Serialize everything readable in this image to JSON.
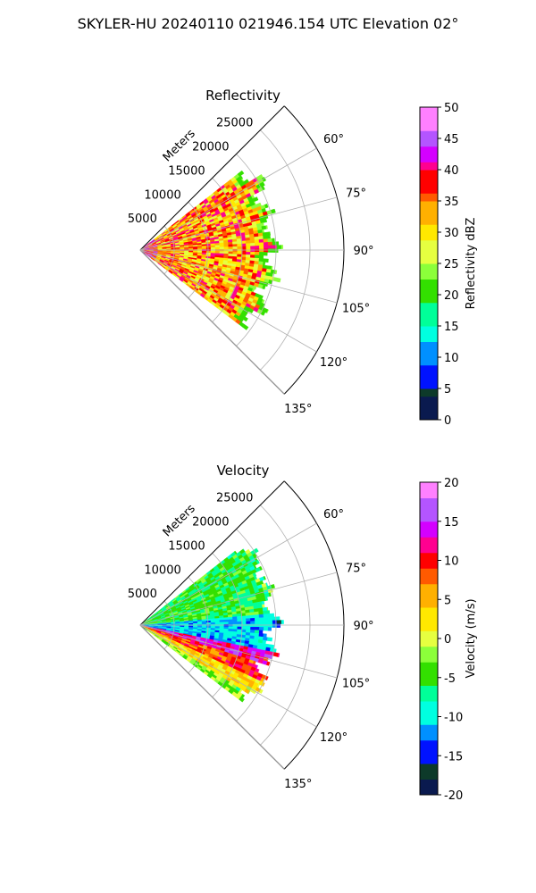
{
  "figure_title": "SKYLER-HU  20240110  021946.154 UTC Elevation 02°",
  "chart_data": [
    {
      "type": "heatmap",
      "title": "Reflectivity",
      "range_label": "Meters",
      "range_ticks": [
        5000,
        10000,
        15000,
        20000,
        25000
      ],
      "range_max": 30000,
      "azimuth_ticks": [
        60,
        75,
        90,
        105,
        120,
        135
      ],
      "azimuth_range": [
        45,
        135
      ],
      "grid": true,
      "colorbar": {
        "label": "Reflectivity dBZ",
        "min": 0,
        "max": 50,
        "ticks": [
          0,
          5,
          10,
          15,
          20,
          25,
          30,
          35,
          40,
          45,
          50
        ],
        "stops": [
          [
            0,
            "#0a1a4f"
          ],
          [
            3,
            "#0d3a2a"
          ],
          [
            5,
            "#0012ff"
          ],
          [
            8,
            "#0090ff"
          ],
          [
            12,
            "#00ffe0"
          ],
          [
            15,
            "#00ff99"
          ],
          [
            18,
            "#33e000"
          ],
          [
            22,
            "#8cff3a"
          ],
          [
            25,
            "#e6ff40"
          ],
          [
            28,
            "#ffe800"
          ],
          [
            31,
            "#ffb000"
          ],
          [
            34,
            "#ff5a00"
          ],
          [
            36,
            "#ff0000"
          ],
          [
            39,
            "#ff0090"
          ],
          [
            41,
            "#d400ff"
          ],
          [
            43,
            "#b455ff"
          ],
          [
            46,
            "#ff80ff"
          ],
          [
            50,
            "#ffe6ff"
          ]
        ]
      },
      "echo_extent": {
        "az_start": 52,
        "az_end": 127,
        "max_range": 19500
      },
      "field_level": {
        "base": 33,
        "near_radar": 39,
        "edge": 21
      }
    },
    {
      "type": "heatmap",
      "title": "Velocity",
      "range_label": "Meters",
      "range_ticks": [
        5000,
        10000,
        15000,
        20000,
        25000
      ],
      "range_max": 30000,
      "azimuth_ticks": [
        60,
        75,
        90,
        105,
        120,
        135
      ],
      "azimuth_range": [
        45,
        135
      ],
      "grid": true,
      "colorbar": {
        "label": "Velocity (m/s)",
        "min": -20,
        "max": 20,
        "ticks": [
          -20,
          -15,
          -10,
          -5,
          0,
          5,
          10,
          15,
          20
        ],
        "stops": [
          [
            -20,
            "#0a1a4f"
          ],
          [
            -18,
            "#0d3a2a"
          ],
          [
            -16,
            "#0012ff"
          ],
          [
            -13,
            "#0090ff"
          ],
          [
            -11,
            "#00ffe0"
          ],
          [
            -8,
            "#00ff99"
          ],
          [
            -6,
            "#33e000"
          ],
          [
            -3,
            "#8cff3a"
          ],
          [
            -1,
            "#e6ff40"
          ],
          [
            1,
            "#ffe800"
          ],
          [
            4,
            "#ffb000"
          ],
          [
            7,
            "#ff5a00"
          ],
          [
            9,
            "#ff0000"
          ],
          [
            11,
            "#ff0090"
          ],
          [
            13,
            "#d400ff"
          ],
          [
            15,
            "#b455ff"
          ],
          [
            18,
            "#ff80ff"
          ],
          [
            20,
            "#ffe6ff"
          ]
        ]
      },
      "echo_extent": {
        "az_start": 52,
        "az_end": 127,
        "max_range": 19500
      },
      "field_bands": [
        {
          "az_max": 84,
          "value": -5
        },
        {
          "az_max": 100,
          "value": -11
        },
        {
          "az_max": 106,
          "value": 13
        },
        {
          "az_max": 114,
          "value": 9
        },
        {
          "az_max": 121,
          "value": 3
        },
        {
          "az_max": 127,
          "value": -2
        }
      ]
    }
  ]
}
